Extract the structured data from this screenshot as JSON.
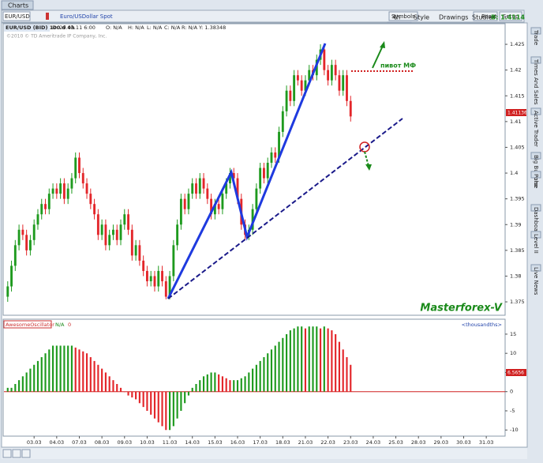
{
  "header": {
    "tab": "Charts",
    "symbol": "EUR/USD",
    "description": "Euro/USDollar Spot",
    "period": "4h",
    "style": "Style",
    "drawings": "Drawings",
    "studies": "Studies",
    "bid": "B: 1.4114",
    "symbols": "Symbols",
    "reset": "Reset",
    "setup": "Setup"
  },
  "info_bar": [
    "EUR/USD (BID) 100 d 4h",
    "D: 29.03.11 6:00",
    "O: N/A",
    "H: N/A",
    "L: N/A",
    "C: N/A",
    "R: N/A",
    "Y: 1.38348"
  ],
  "copyright": "©2010 © TD Ameritrade IP Company, Inc.",
  "annotations": {
    "pivot": "пивот МФ",
    "watermark": "Masterforex-V",
    "price_tag": "1.41136",
    "osc_tag": "6.5656"
  },
  "sidebar": [
    "Trade",
    "Times And Sales",
    "Active Trader",
    "Big Buttons",
    "Pulse",
    "Dashboard",
    "Level II",
    "Live News"
  ],
  "chart_data": [
    {
      "type": "candlestick",
      "up_color": "#1e9a1e",
      "down_color": "#e3262a",
      "xlim": [
        -1,
        132
      ],
      "ylim": [
        1.3724,
        1.429
      ],
      "yticks": [
        1.375,
        1.38,
        1.385,
        1.39,
        1.395,
        1.4,
        1.405,
        1.41,
        1.415,
        1.42,
        1.425
      ],
      "ohlc": [
        [
          1.376,
          1.379,
          1.375,
          1.378
        ],
        [
          1.378,
          1.383,
          1.377,
          1.382
        ],
        [
          1.382,
          1.387,
          1.381,
          1.386
        ],
        [
          1.386,
          1.39,
          1.385,
          1.389
        ],
        [
          1.389,
          1.39,
          1.387,
          1.388
        ],
        [
          1.388,
          1.389,
          1.384,
          1.385
        ],
        [
          1.385,
          1.388,
          1.384,
          1.387
        ],
        [
          1.387,
          1.391,
          1.386,
          1.39
        ],
        [
          1.39,
          1.393,
          1.389,
          1.392
        ],
        [
          1.392,
          1.395,
          1.391,
          1.394
        ],
        [
          1.394,
          1.395,
          1.392,
          1.393
        ],
        [
          1.393,
          1.397,
          1.392,
          1.396
        ],
        [
          1.396,
          1.398,
          1.395,
          1.397
        ],
        [
          1.397,
          1.398,
          1.395,
          1.396
        ],
        [
          1.396,
          1.399,
          1.395,
          1.398
        ],
        [
          1.398,
          1.399,
          1.394,
          1.395
        ],
        [
          1.395,
          1.398,
          1.394,
          1.397
        ],
        [
          1.397,
          1.4,
          1.396,
          1.399
        ],
        [
          1.399,
          1.404,
          1.398,
          1.403
        ],
        [
          1.403,
          1.404,
          1.399,
          1.4
        ],
        [
          1.4,
          1.401,
          1.397,
          1.398
        ],
        [
          1.398,
          1.399,
          1.395,
          1.396
        ],
        [
          1.396,
          1.397,
          1.393,
          1.394
        ],
        [
          1.394,
          1.395,
          1.391,
          1.392
        ],
        [
          1.392,
          1.393,
          1.387,
          1.388
        ],
        [
          1.388,
          1.391,
          1.387,
          1.39
        ],
        [
          1.39,
          1.391,
          1.385,
          1.386
        ],
        [
          1.386,
          1.389,
          1.385,
          1.388
        ],
        [
          1.388,
          1.39,
          1.387,
          1.389
        ],
        [
          1.389,
          1.39,
          1.386,
          1.387
        ],
        [
          1.387,
          1.391,
          1.386,
          1.39
        ],
        [
          1.39,
          1.393,
          1.389,
          1.392
        ],
        [
          1.392,
          1.393,
          1.388,
          1.389
        ],
        [
          1.389,
          1.39,
          1.383,
          1.384
        ],
        [
          1.384,
          1.387,
          1.383,
          1.386
        ],
        [
          1.386,
          1.387,
          1.382,
          1.383
        ],
        [
          1.383,
          1.384,
          1.38,
          1.381
        ],
        [
          1.381,
          1.382,
          1.378,
          1.379
        ],
        [
          1.379,
          1.381,
          1.378,
          1.38
        ],
        [
          1.38,
          1.381,
          1.377,
          1.378
        ],
        [
          1.378,
          1.382,
          1.377,
          1.381
        ],
        [
          1.381,
          1.382,
          1.378,
          1.379
        ],
        [
          1.379,
          1.38,
          1.3755,
          1.376
        ],
        [
          1.376,
          1.381,
          1.3755,
          1.38
        ],
        [
          1.38,
          1.387,
          1.379,
          1.386
        ],
        [
          1.386,
          1.391,
          1.385,
          1.39
        ],
        [
          1.39,
          1.396,
          1.389,
          1.395
        ],
        [
          1.395,
          1.396,
          1.392,
          1.393
        ],
        [
          1.393,
          1.397,
          1.392,
          1.396
        ],
        [
          1.396,
          1.399,
          1.395,
          1.398
        ],
        [
          1.398,
          1.399,
          1.395,
          1.396
        ],
        [
          1.396,
          1.4,
          1.395,
          1.399
        ],
        [
          1.399,
          1.4,
          1.396,
          1.397
        ],
        [
          1.397,
          1.398,
          1.394,
          1.395
        ],
        [
          1.395,
          1.396,
          1.391,
          1.392
        ],
        [
          1.392,
          1.395,
          1.391,
          1.394
        ],
        [
          1.394,
          1.395,
          1.392,
          1.393
        ],
        [
          1.393,
          1.397,
          1.392,
          1.396
        ],
        [
          1.396,
          1.399,
          1.395,
          1.398
        ],
        [
          1.398,
          1.401,
          1.397,
          1.4
        ],
        [
          1.4,
          1.401,
          1.398,
          1.399
        ],
        [
          1.399,
          1.4,
          1.394,
          1.395
        ],
        [
          1.395,
          1.396,
          1.389,
          1.39
        ],
        [
          1.39,
          1.391,
          1.387,
          1.388
        ],
        [
          1.388,
          1.39,
          1.387,
          1.389
        ],
        [
          1.389,
          1.394,
          1.388,
          1.393
        ],
        [
          1.393,
          1.398,
          1.392,
          1.397
        ],
        [
          1.397,
          1.402,
          1.396,
          1.401
        ],
        [
          1.401,
          1.402,
          1.398,
          1.399
        ],
        [
          1.399,
          1.403,
          1.398,
          1.402
        ],
        [
          1.402,
          1.405,
          1.401,
          1.404
        ],
        [
          1.404,
          1.405,
          1.402,
          1.403
        ],
        [
          1.403,
          1.409,
          1.402,
          1.408
        ],
        [
          1.408,
          1.413,
          1.407,
          1.412
        ],
        [
          1.412,
          1.417,
          1.411,
          1.416
        ],
        [
          1.416,
          1.417,
          1.413,
          1.414
        ],
        [
          1.414,
          1.42,
          1.413,
          1.419
        ],
        [
          1.419,
          1.42,
          1.417,
          1.418
        ],
        [
          1.418,
          1.419,
          1.415,
          1.416
        ],
        [
          1.416,
          1.419,
          1.415,
          1.418
        ],
        [
          1.418,
          1.421,
          1.417,
          1.42
        ],
        [
          1.42,
          1.421,
          1.418,
          1.419
        ],
        [
          1.419,
          1.423,
          1.418,
          1.422
        ],
        [
          1.422,
          1.425,
          1.421,
          1.424
        ],
        [
          1.424,
          1.425,
          1.419,
          1.42
        ],
        [
          1.42,
          1.421,
          1.417,
          1.418
        ],
        [
          1.418,
          1.422,
          1.417,
          1.421
        ],
        [
          1.421,
          1.422,
          1.418,
          1.419
        ],
        [
          1.419,
          1.42,
          1.415,
          1.416
        ],
        [
          1.416,
          1.42,
          1.415,
          1.419
        ],
        [
          1.419,
          1.42,
          1.413,
          1.414
        ],
        [
          1.414,
          1.415,
          1.41,
          1.411
        ]
      ]
    },
    {
      "type": "bar",
      "title": "AwesomeOscillator",
      "status": "N/A",
      "value_text": "0",
      "units": "<thousandths>",
      "up_color": "#1e9a1e",
      "down_color": "#e3262a",
      "xlim": [
        -1,
        132
      ],
      "ylim": [
        -11.6,
        18.9
      ],
      "yticks": [
        15,
        10,
        5,
        0,
        -5,
        -10
      ],
      "xticks": [
        {
          "value": 7,
          "label": "03.03"
        },
        {
          "value": 13,
          "label": "04.03"
        },
        {
          "value": 19,
          "label": "07.03"
        },
        {
          "value": 25,
          "label": "08.03"
        },
        {
          "value": 31,
          "label": "09.03"
        },
        {
          "value": 37,
          "label": "10.03"
        },
        {
          "value": 43,
          "label": "11.03"
        },
        {
          "value": 49,
          "label": "14.03"
        },
        {
          "value": 55,
          "label": "15.03"
        },
        {
          "value": 61,
          "label": "16.03"
        },
        {
          "value": 67,
          "label": "17.03"
        },
        {
          "value": 73,
          "label": "18.03"
        },
        {
          "value": 79,
          "label": "21.03"
        },
        {
          "value": 85,
          "label": "22.03"
        },
        {
          "value": 91,
          "label": "23.03"
        },
        {
          "value": 97,
          "label": "24.03"
        },
        {
          "value": 103,
          "label": "25.03"
        },
        {
          "value": 109,
          "label": "28.03"
        },
        {
          "value": 115,
          "label": "29.03"
        },
        {
          "value": 121,
          "label": "30.03"
        },
        {
          "value": 127,
          "label": "31.03"
        }
      ],
      "values": [
        1,
        1,
        2,
        3,
        4,
        5,
        6,
        7,
        8,
        9,
        10,
        11,
        12,
        12,
        12,
        12,
        12,
        12,
        11.5,
        11,
        10.5,
        10,
        9,
        8,
        7,
        6,
        5,
        4,
        3,
        2,
        1,
        0,
        -1,
        -1.5,
        -2,
        -3,
        -4,
        -5,
        -6,
        -7,
        -8,
        -9,
        -10,
        -10,
        -9,
        -7,
        -5,
        -3,
        -1,
        1,
        2,
        3,
        4,
        4.5,
        5,
        5,
        4.5,
        4,
        3.5,
        3,
        3,
        3,
        3.5,
        4,
        5,
        6,
        7,
        8,
        9,
        10,
        11,
        12,
        13,
        14,
        15,
        16,
        16.5,
        17,
        17,
        16.5,
        17,
        17,
        17,
        16.5,
        17,
        16.5,
        16,
        15,
        13,
        11,
        9,
        7
      ]
    }
  ]
}
